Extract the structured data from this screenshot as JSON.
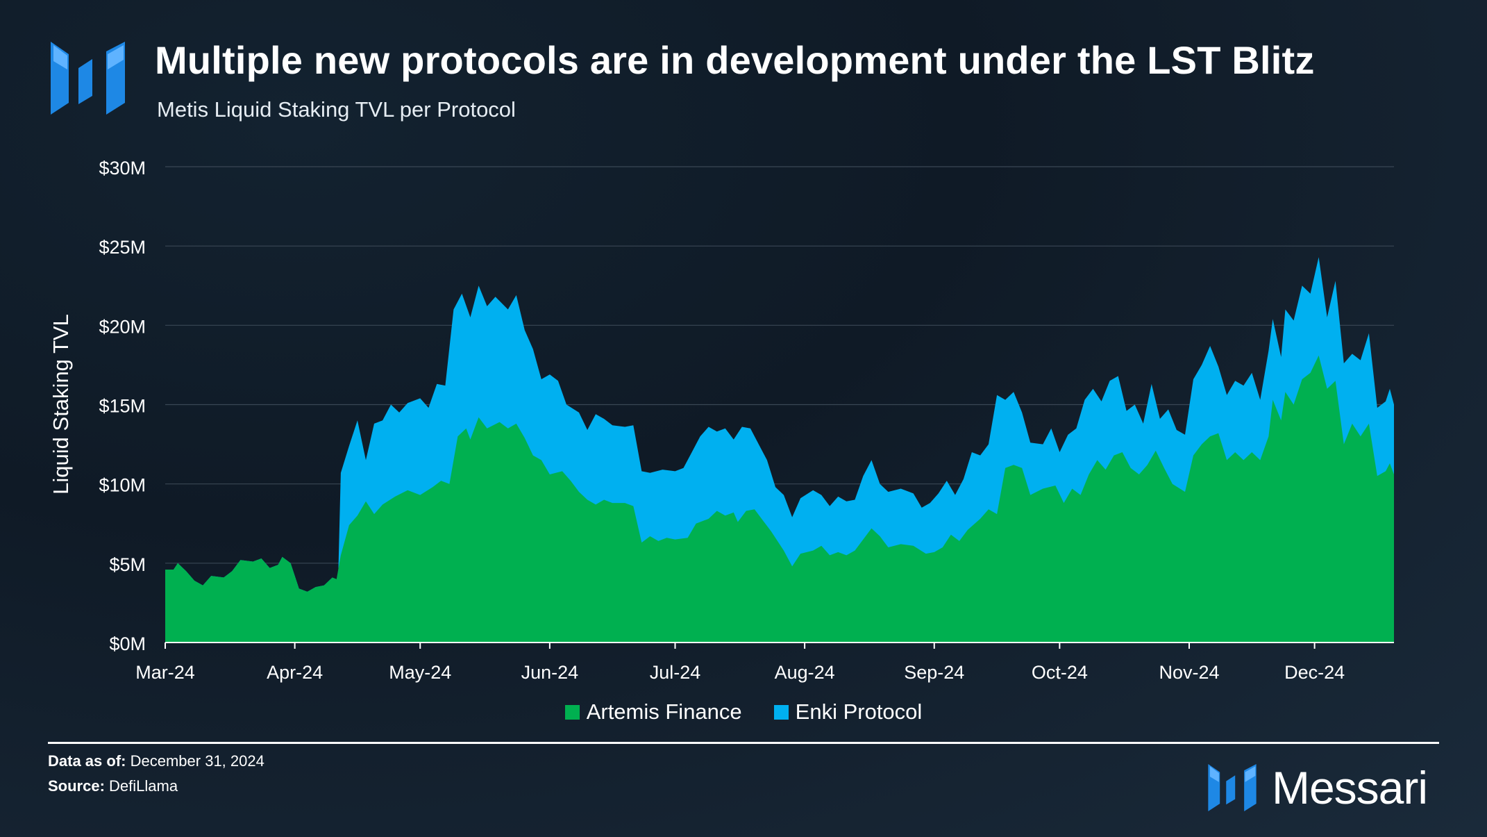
{
  "header": {
    "title": "Multiple new protocols are in development under the LST Blitz",
    "subtitle": "Metis Liquid Staking TVL per Protocol"
  },
  "footer": {
    "data_as_of_label": "Data as of:",
    "data_as_of_value": "December 31, 2024",
    "source_label": "Source:",
    "source_value": "DefiLlama",
    "brand": "Messari"
  },
  "colors": {
    "artemis": "#00b050",
    "enki": "#00b0f0",
    "brand_blue": "#1e88e5",
    "gridline": "#3a4755"
  },
  "chart_data": {
    "type": "area",
    "stacked": true,
    "ylabel": "Liquid Staking TVL",
    "ylim": [
      0,
      30
    ],
    "y_ticks": [
      0,
      5,
      10,
      15,
      20,
      25,
      30
    ],
    "y_tick_labels": [
      "$0M",
      "$5M",
      "$10M",
      "$15M",
      "$20M",
      "$25M",
      "$30M"
    ],
    "x_tick_labels": [
      "Mar-24",
      "Apr-24",
      "May-24",
      "Jun-24",
      "Jul-24",
      "Aug-24",
      "Sep-24",
      "Oct-24",
      "Nov-24",
      "Dec-24"
    ],
    "x_tick_dates": [
      "2024-03-01",
      "2024-04-01",
      "2024-05-01",
      "2024-06-01",
      "2024-07-01",
      "2024-08-01",
      "2024-09-01",
      "2024-10-01",
      "2024-11-01",
      "2024-12-01"
    ],
    "x_range": [
      "2024-03-01",
      "2024-12-20"
    ],
    "legend_position": "bottom",
    "grid": true,
    "series": [
      {
        "name": "Artemis Finance",
        "color": "#00b050",
        "points": [
          [
            "2024-03-01",
            4.6
          ],
          [
            "2024-03-03",
            4.6
          ],
          [
            "2024-03-04",
            5.0
          ],
          [
            "2024-03-06",
            4.5
          ],
          [
            "2024-03-08",
            3.9
          ],
          [
            "2024-03-10",
            3.6
          ],
          [
            "2024-03-12",
            4.2
          ],
          [
            "2024-03-15",
            4.1
          ],
          [
            "2024-03-17",
            4.5
          ],
          [
            "2024-03-19",
            5.2
          ],
          [
            "2024-03-22",
            5.1
          ],
          [
            "2024-03-24",
            5.3
          ],
          [
            "2024-03-26",
            4.7
          ],
          [
            "2024-03-28",
            4.9
          ],
          [
            "2024-03-29",
            5.4
          ],
          [
            "2024-03-31",
            5.0
          ],
          [
            "2024-04-02",
            3.4
          ],
          [
            "2024-04-04",
            3.2
          ],
          [
            "2024-04-06",
            3.5
          ],
          [
            "2024-04-08",
            3.6
          ],
          [
            "2024-04-10",
            4.1
          ],
          [
            "2024-04-11",
            4.0
          ],
          [
            "2024-04-12",
            5.5
          ],
          [
            "2024-04-14",
            7.4
          ],
          [
            "2024-04-16",
            8.0
          ],
          [
            "2024-04-18",
            8.9
          ],
          [
            "2024-04-20",
            8.1
          ],
          [
            "2024-04-22",
            8.7
          ],
          [
            "2024-04-25",
            9.2
          ],
          [
            "2024-04-28",
            9.6
          ],
          [
            "2024-05-01",
            9.3
          ],
          [
            "2024-05-04",
            9.8
          ],
          [
            "2024-05-06",
            10.2
          ],
          [
            "2024-05-08",
            10.0
          ],
          [
            "2024-05-10",
            13.0
          ],
          [
            "2024-05-12",
            13.5
          ],
          [
            "2024-05-13",
            12.8
          ],
          [
            "2024-05-15",
            14.2
          ],
          [
            "2024-05-17",
            13.5
          ],
          [
            "2024-05-20",
            13.9
          ],
          [
            "2024-05-22",
            13.5
          ],
          [
            "2024-05-24",
            13.8
          ],
          [
            "2024-05-26",
            12.9
          ],
          [
            "2024-05-28",
            11.8
          ],
          [
            "2024-05-30",
            11.5
          ],
          [
            "2024-06-01",
            10.6
          ],
          [
            "2024-06-04",
            10.8
          ],
          [
            "2024-06-06",
            10.2
          ],
          [
            "2024-06-08",
            9.5
          ],
          [
            "2024-06-10",
            9.0
          ],
          [
            "2024-06-12",
            8.7
          ],
          [
            "2024-06-14",
            9.0
          ],
          [
            "2024-06-16",
            8.8
          ],
          [
            "2024-06-19",
            8.8
          ],
          [
            "2024-06-21",
            8.6
          ],
          [
            "2024-06-23",
            6.3
          ],
          [
            "2024-06-25",
            6.7
          ],
          [
            "2024-06-27",
            6.4
          ],
          [
            "2024-06-29",
            6.6
          ],
          [
            "2024-07-01",
            6.5
          ],
          [
            "2024-07-04",
            6.6
          ],
          [
            "2024-07-06",
            7.5
          ],
          [
            "2024-07-09",
            7.8
          ],
          [
            "2024-07-11",
            8.3
          ],
          [
            "2024-07-13",
            8.0
          ],
          [
            "2024-07-15",
            8.2
          ],
          [
            "2024-07-16",
            7.6
          ],
          [
            "2024-07-18",
            8.3
          ],
          [
            "2024-07-20",
            8.4
          ],
          [
            "2024-07-22",
            7.7
          ],
          [
            "2024-07-24",
            7.0
          ],
          [
            "2024-07-27",
            5.8
          ],
          [
            "2024-07-29",
            4.8
          ],
          [
            "2024-07-31",
            5.6
          ],
          [
            "2024-08-03",
            5.8
          ],
          [
            "2024-08-05",
            6.1
          ],
          [
            "2024-08-07",
            5.5
          ],
          [
            "2024-08-09",
            5.7
          ],
          [
            "2024-08-11",
            5.5
          ],
          [
            "2024-08-13",
            5.8
          ],
          [
            "2024-08-15",
            6.5
          ],
          [
            "2024-08-17",
            7.2
          ],
          [
            "2024-08-19",
            6.7
          ],
          [
            "2024-08-21",
            6.0
          ],
          [
            "2024-08-24",
            6.2
          ],
          [
            "2024-08-27",
            6.1
          ],
          [
            "2024-08-30",
            5.6
          ],
          [
            "2024-09-01",
            5.7
          ],
          [
            "2024-09-03",
            6.0
          ],
          [
            "2024-09-05",
            6.8
          ],
          [
            "2024-09-07",
            6.4
          ],
          [
            "2024-09-09",
            7.1
          ],
          [
            "2024-09-12",
            7.8
          ],
          [
            "2024-09-14",
            8.4
          ],
          [
            "2024-09-16",
            8.1
          ],
          [
            "2024-09-18",
            11.0
          ],
          [
            "2024-09-20",
            11.2
          ],
          [
            "2024-09-22",
            11.0
          ],
          [
            "2024-09-24",
            9.3
          ],
          [
            "2024-09-27",
            9.7
          ],
          [
            "2024-09-30",
            9.9
          ],
          [
            "2024-10-02",
            8.8
          ],
          [
            "2024-10-04",
            9.7
          ],
          [
            "2024-10-06",
            9.3
          ],
          [
            "2024-10-08",
            10.6
          ],
          [
            "2024-10-10",
            11.5
          ],
          [
            "2024-10-12",
            10.9
          ],
          [
            "2024-10-14",
            11.8
          ],
          [
            "2024-10-16",
            12.0
          ],
          [
            "2024-10-18",
            11.0
          ],
          [
            "2024-10-20",
            10.6
          ],
          [
            "2024-10-22",
            11.2
          ],
          [
            "2024-10-24",
            12.1
          ],
          [
            "2024-10-26",
            11.0
          ],
          [
            "2024-10-28",
            10.0
          ],
          [
            "2024-10-31",
            9.5
          ],
          [
            "2024-11-02",
            11.8
          ],
          [
            "2024-11-04",
            12.5
          ],
          [
            "2024-11-06",
            13.0
          ],
          [
            "2024-11-08",
            13.2
          ],
          [
            "2024-11-10",
            11.5
          ],
          [
            "2024-11-12",
            12.0
          ],
          [
            "2024-11-14",
            11.5
          ],
          [
            "2024-11-16",
            12.0
          ],
          [
            "2024-11-18",
            11.5
          ],
          [
            "2024-11-20",
            13.0
          ],
          [
            "2024-11-21",
            15.3
          ],
          [
            "2024-11-23",
            14.0
          ],
          [
            "2024-11-24",
            15.8
          ],
          [
            "2024-11-26",
            15.0
          ],
          [
            "2024-11-28",
            16.6
          ],
          [
            "2024-11-30",
            17.0
          ],
          [
            "2024-12-02",
            18.1
          ],
          [
            "2024-12-04",
            16.0
          ],
          [
            "2024-12-06",
            16.5
          ],
          [
            "2024-12-08",
            12.5
          ],
          [
            "2024-12-10",
            13.8
          ],
          [
            "2024-12-12",
            13.0
          ],
          [
            "2024-12-14",
            13.8
          ],
          [
            "2024-12-16",
            10.5
          ],
          [
            "2024-12-18",
            10.8
          ],
          [
            "2024-12-19",
            11.3
          ],
          [
            "2024-12-20",
            10.6
          ]
        ]
      },
      {
        "name": "Enki Protocol",
        "color": "#00b0f0",
        "points": [
          [
            "2024-04-11",
            0.0
          ],
          [
            "2024-04-12",
            10.7
          ],
          [
            "2024-04-14",
            12.4
          ],
          [
            "2024-04-16",
            14.0
          ],
          [
            "2024-04-18",
            11.5
          ],
          [
            "2024-04-20",
            13.8
          ],
          [
            "2024-04-22",
            14.0
          ],
          [
            "2024-04-24",
            15.0
          ],
          [
            "2024-04-26",
            14.5
          ],
          [
            "2024-04-28",
            15.1
          ],
          [
            "2024-05-01",
            15.4
          ],
          [
            "2024-05-03",
            14.8
          ],
          [
            "2024-05-05",
            16.3
          ],
          [
            "2024-05-07",
            16.2
          ],
          [
            "2024-05-09",
            21.0
          ],
          [
            "2024-05-11",
            22.0
          ],
          [
            "2024-05-13",
            20.5
          ],
          [
            "2024-05-15",
            22.5
          ],
          [
            "2024-05-17",
            21.2
          ],
          [
            "2024-05-19",
            21.8
          ],
          [
            "2024-05-22",
            21.0
          ],
          [
            "2024-05-24",
            21.9
          ],
          [
            "2024-05-26",
            19.7
          ],
          [
            "2024-05-28",
            18.5
          ],
          [
            "2024-05-30",
            16.6
          ],
          [
            "2024-06-01",
            16.9
          ],
          [
            "2024-06-03",
            16.5
          ],
          [
            "2024-06-05",
            15.0
          ],
          [
            "2024-06-08",
            14.5
          ],
          [
            "2024-06-10",
            13.4
          ],
          [
            "2024-06-12",
            14.4
          ],
          [
            "2024-06-14",
            14.1
          ],
          [
            "2024-06-16",
            13.7
          ],
          [
            "2024-06-19",
            13.6
          ],
          [
            "2024-06-21",
            13.7
          ],
          [
            "2024-06-23",
            10.8
          ],
          [
            "2024-06-25",
            10.7
          ],
          [
            "2024-06-28",
            10.9
          ],
          [
            "2024-07-01",
            10.8
          ],
          [
            "2024-07-03",
            11.0
          ],
          [
            "2024-07-05",
            12.0
          ],
          [
            "2024-07-07",
            13.0
          ],
          [
            "2024-07-09",
            13.6
          ],
          [
            "2024-07-11",
            13.3
          ],
          [
            "2024-07-13",
            13.5
          ],
          [
            "2024-07-15",
            12.8
          ],
          [
            "2024-07-17",
            13.6
          ],
          [
            "2024-07-19",
            13.5
          ],
          [
            "2024-07-21",
            12.5
          ],
          [
            "2024-07-23",
            11.5
          ],
          [
            "2024-07-25",
            9.8
          ],
          [
            "2024-07-27",
            9.3
          ],
          [
            "2024-07-29",
            7.9
          ],
          [
            "2024-07-31",
            9.1
          ],
          [
            "2024-08-03",
            9.6
          ],
          [
            "2024-08-05",
            9.3
          ],
          [
            "2024-08-07",
            8.6
          ],
          [
            "2024-08-09",
            9.2
          ],
          [
            "2024-08-11",
            8.9
          ],
          [
            "2024-08-13",
            9.0
          ],
          [
            "2024-08-15",
            10.5
          ],
          [
            "2024-08-17",
            11.5
          ],
          [
            "2024-08-19",
            10.0
          ],
          [
            "2024-08-21",
            9.5
          ],
          [
            "2024-08-24",
            9.7
          ],
          [
            "2024-08-27",
            9.4
          ],
          [
            "2024-08-29",
            8.5
          ],
          [
            "2024-08-31",
            8.8
          ],
          [
            "2024-09-02",
            9.4
          ],
          [
            "2024-09-04",
            10.2
          ],
          [
            "2024-09-06",
            9.3
          ],
          [
            "2024-09-08",
            10.3
          ],
          [
            "2024-09-10",
            12.0
          ],
          [
            "2024-09-12",
            11.8
          ],
          [
            "2024-09-14",
            12.5
          ],
          [
            "2024-09-16",
            15.6
          ],
          [
            "2024-09-18",
            15.3
          ],
          [
            "2024-09-20",
            15.8
          ],
          [
            "2024-09-22",
            14.5
          ],
          [
            "2024-09-24",
            12.6
          ],
          [
            "2024-09-27",
            12.5
          ],
          [
            "2024-09-29",
            13.5
          ],
          [
            "2024-10-01",
            12.0
          ],
          [
            "2024-10-03",
            13.1
          ],
          [
            "2024-10-05",
            13.5
          ],
          [
            "2024-10-07",
            15.3
          ],
          [
            "2024-10-09",
            16.0
          ],
          [
            "2024-10-11",
            15.2
          ],
          [
            "2024-10-13",
            16.5
          ],
          [
            "2024-10-15",
            16.8
          ],
          [
            "2024-10-17",
            14.6
          ],
          [
            "2024-10-19",
            15.0
          ],
          [
            "2024-10-21",
            13.8
          ],
          [
            "2024-10-23",
            16.3
          ],
          [
            "2024-10-25",
            14.1
          ],
          [
            "2024-10-27",
            14.7
          ],
          [
            "2024-10-29",
            13.4
          ],
          [
            "2024-10-31",
            13.1
          ],
          [
            "2024-11-02",
            16.6
          ],
          [
            "2024-11-04",
            17.5
          ],
          [
            "2024-11-06",
            18.7
          ],
          [
            "2024-11-08",
            17.4
          ],
          [
            "2024-11-10",
            15.6
          ],
          [
            "2024-11-12",
            16.5
          ],
          [
            "2024-11-14",
            16.2
          ],
          [
            "2024-11-16",
            17.0
          ],
          [
            "2024-11-18",
            15.3
          ],
          [
            "2024-11-20",
            18.4
          ],
          [
            "2024-11-21",
            20.4
          ],
          [
            "2024-11-23",
            18.0
          ],
          [
            "2024-11-24",
            21.0
          ],
          [
            "2024-11-26",
            20.3
          ],
          [
            "2024-11-28",
            22.5
          ],
          [
            "2024-11-30",
            22.0
          ],
          [
            "2024-12-02",
            24.3
          ],
          [
            "2024-12-04",
            20.5
          ],
          [
            "2024-12-06",
            22.8
          ],
          [
            "2024-12-08",
            17.6
          ],
          [
            "2024-12-10",
            18.2
          ],
          [
            "2024-12-12",
            17.8
          ],
          [
            "2024-12-14",
            19.5
          ],
          [
            "2024-12-16",
            14.8
          ],
          [
            "2024-12-18",
            15.2
          ],
          [
            "2024-12-19",
            16.0
          ],
          [
            "2024-12-20",
            15.0
          ]
        ]
      }
    ]
  }
}
